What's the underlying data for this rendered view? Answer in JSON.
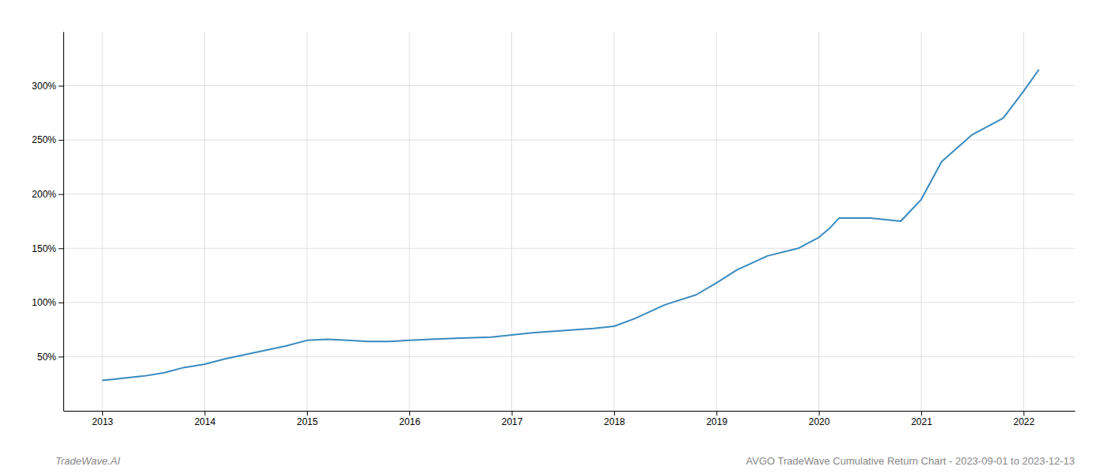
{
  "chart_data": {
    "type": "line",
    "x": [
      2013.0,
      2013.1,
      2013.2,
      2013.4,
      2013.6,
      2013.8,
      2014.0,
      2014.2,
      2014.5,
      2014.8,
      2015.0,
      2015.2,
      2015.4,
      2015.6,
      2015.8,
      2016.0,
      2016.2,
      2016.5,
      2016.8,
      2017.0,
      2017.2,
      2017.5,
      2017.8,
      2018.0,
      2018.2,
      2018.5,
      2018.8,
      2019.0,
      2019.2,
      2019.5,
      2019.8,
      2020.0,
      2020.1,
      2020.2,
      2020.5,
      2020.8,
      2021.0,
      2021.2,
      2021.5,
      2021.8,
      2022.0,
      2022.15
    ],
    "values": [
      28,
      29,
      30,
      32,
      35,
      40,
      43,
      48,
      54,
      60,
      65,
      66,
      65,
      64,
      64,
      65,
      66,
      67,
      68,
      70,
      72,
      74,
      76,
      78,
      85,
      98,
      107,
      118,
      130,
      143,
      150,
      160,
      168,
      178,
      178,
      175,
      195,
      230,
      255,
      270,
      295,
      315
    ],
    "color": "#3a8abf",
    "xlim": [
      2012.62,
      2022.5
    ],
    "ylim": [
      0,
      350
    ],
    "xticks": [
      2013,
      2014,
      2015,
      2016,
      2017,
      2018,
      2019,
      2020,
      2021,
      2022
    ],
    "yticks": [
      {
        "value": 50,
        "label": "50%"
      },
      {
        "value": 100,
        "label": "100%"
      },
      {
        "value": 150,
        "label": "150%"
      },
      {
        "value": 200,
        "label": "200%"
      },
      {
        "value": 250,
        "label": "250%"
      },
      {
        "value": 300,
        "label": "300%"
      }
    ],
    "grid": true,
    "annotations": [
      "TradeWave.AI",
      "AVGO TradeWave Cumulative Return Chart - 2023-09-01 to 2023-12-13"
    ]
  }
}
